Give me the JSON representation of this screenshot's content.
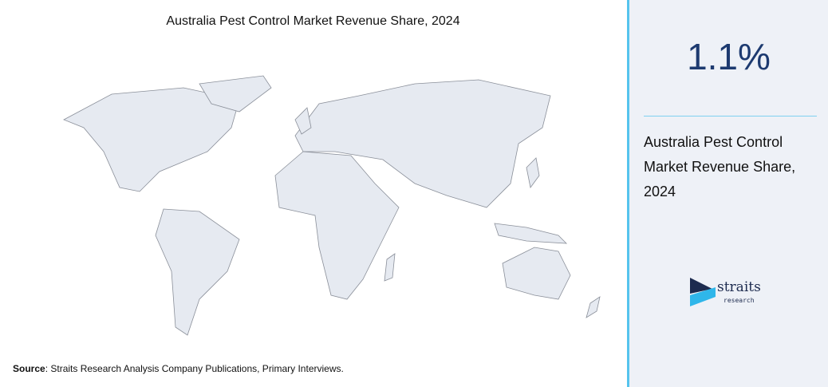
{
  "title": "Australia Pest Control Market Revenue Share, 2024",
  "stat": {
    "value": "1.1%",
    "label": "Australia Pest Control Market Revenue Share, 2024"
  },
  "source": {
    "label": "Source",
    "text": ": Straits Research Analysis Company Publications, Primary Interviews."
  },
  "logo": {
    "name": "straits",
    "tagline": "research"
  }
}
